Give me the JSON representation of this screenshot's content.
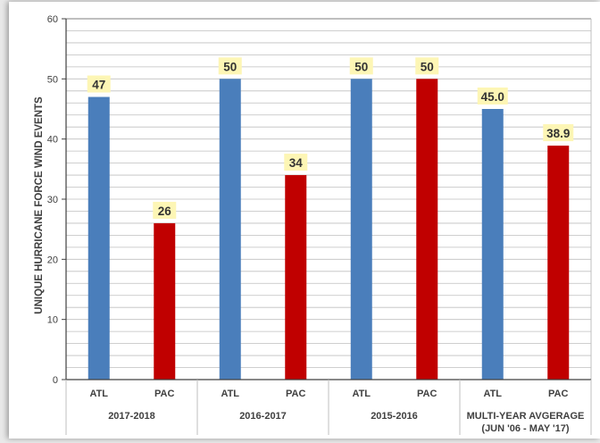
{
  "chart_data": {
    "type": "bar",
    "ylabel": "UNIQUE HURRICANE FORCE WIND EVENTS",
    "ylim": [
      0,
      60
    ],
    "yticks": [
      0,
      10,
      20,
      30,
      40,
      50,
      60
    ],
    "minor_grid_step": 2,
    "grid": true,
    "groups": [
      {
        "label": "2017-2018",
        "bars": [
          {
            "category": "ATL",
            "value": 47,
            "value_label": "47"
          },
          {
            "category": "PAC",
            "value": 26,
            "value_label": "26"
          }
        ]
      },
      {
        "label": "2016-2017",
        "bars": [
          {
            "category": "ATL",
            "value": 50,
            "value_label": "50"
          },
          {
            "category": "PAC",
            "value": 34,
            "value_label": "34"
          }
        ]
      },
      {
        "label": "2015-2016",
        "bars": [
          {
            "category": "ATL",
            "value": 50,
            "value_label": "50"
          },
          {
            "category": "PAC",
            "value": 50,
            "value_label": "50"
          }
        ]
      },
      {
        "label": "MULTI-YEAR AVGERAGE",
        "label_line2": "(JUN '06 - MAY '17)",
        "bars": [
          {
            "category": "ATL",
            "value": 45.0,
            "value_label": "45.0"
          },
          {
            "category": "PAC",
            "value": 38.9,
            "value_label": "38.9"
          }
        ]
      }
    ],
    "colors": {
      "ATL": "#4a7ebb",
      "PAC": "#c00000",
      "label_bg": "#fdf6b5",
      "grid": "#bfbfbf"
    }
  }
}
